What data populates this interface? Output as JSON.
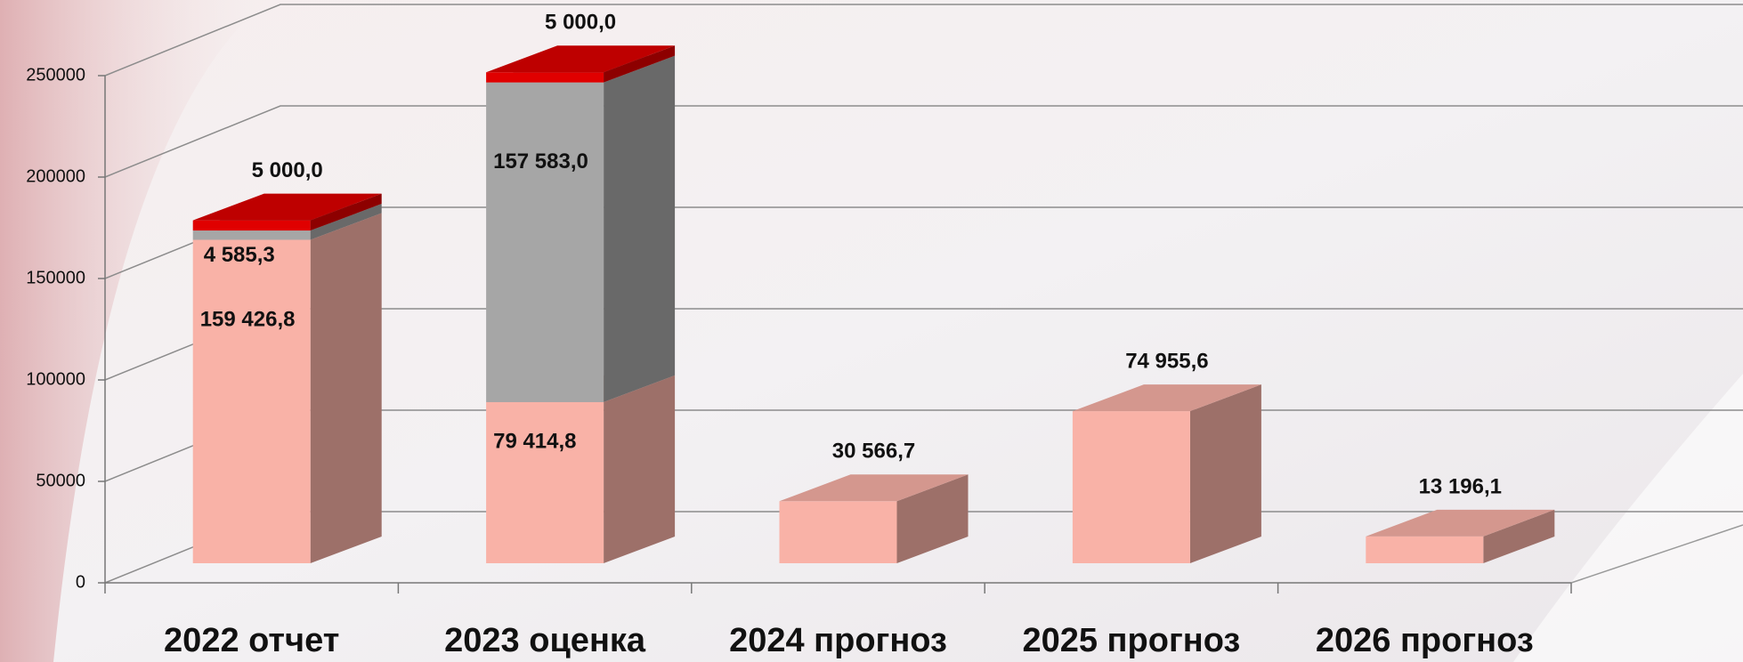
{
  "chart_data": {
    "type": "bar3d_stacked",
    "categories": [
      "2022 отчет",
      "2023 оценка",
      "2024 прогноз",
      "2025 прогноз",
      "2026 прогноз"
    ],
    "series": [
      {
        "color": "#f9b2a7",
        "values": [
          159426.8,
          79414.8,
          30566.7,
          74955.6,
          13196.1
        ],
        "value_labels": [
          "159 426,8",
          "79 414,8",
          "30 566,7",
          "74 955,6",
          "13 196,1"
        ]
      },
      {
        "color": "#a6a6a6",
        "values": [
          4585.3,
          157583.0,
          null,
          null,
          null
        ],
        "value_labels": [
          "4 585,3",
          "157 583,0",
          null,
          null,
          null
        ]
      },
      {
        "color": "#e00000",
        "values": [
          5000.0,
          5000.0,
          null,
          null,
          null
        ],
        "value_labels": [
          "5 000,0",
          "5 000,0",
          null,
          null,
          null
        ]
      }
    ],
    "ylim": [
      0,
      250000
    ],
    "yticks": [
      0,
      50000,
      100000,
      150000,
      200000,
      250000
    ],
    "grid": true
  }
}
